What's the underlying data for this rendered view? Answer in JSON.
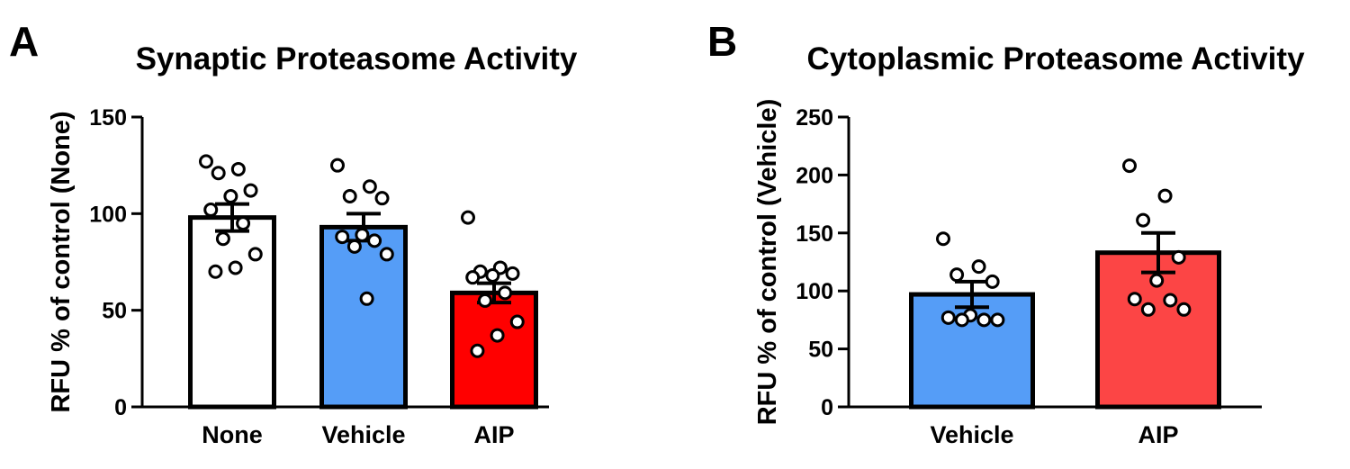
{
  "chart_data": [
    {
      "type": "bar",
      "panel_label": "A",
      "title": "Synaptic Proteasome Activity",
      "xlabel": "",
      "ylabel": "RFU % of control (None)",
      "ylim": [
        0,
        150
      ],
      "yticks": [
        0,
        50,
        100,
        150
      ],
      "ytick_labels": [
        "0",
        "50",
        "100",
        "150"
      ],
      "categories": [
        "None",
        "Vehicle",
        "AIP"
      ],
      "values": [
        98,
        93,
        59
      ],
      "sem": [
        7,
        7,
        5
      ],
      "colors": [
        "#ffffff",
        "#559df7",
        "#ff0000"
      ],
      "points": [
        [
          127,
          123,
          121,
          112,
          109,
          102,
          95,
          87,
          79,
          72,
          70
        ],
        [
          125,
          114,
          109,
          108,
          89,
          88,
          86,
          83,
          79,
          56
        ],
        [
          98,
          72,
          70,
          69,
          68,
          67,
          59,
          55,
          44,
          37,
          29
        ]
      ]
    },
    {
      "type": "bar",
      "panel_label": "B",
      "title": "Cytoplasmic Proteasome Activity",
      "xlabel": "",
      "ylabel": "RFU % of control (Vehicle)",
      "ylim": [
        0,
        250
      ],
      "yticks": [
        0,
        50,
        100,
        150,
        200,
        250
      ],
      "ytick_labels": [
        "0",
        "50",
        "100",
        "150",
        "200",
        "250"
      ],
      "categories": [
        "Vehicle",
        "AIP"
      ],
      "values": [
        97,
        133
      ],
      "sem": [
        11,
        17
      ],
      "colors": [
        "#559df7",
        "#fc4545"
      ],
      "points": [
        [
          145,
          121,
          114,
          108,
          79,
          77,
          75,
          75,
          75
        ],
        [
          208,
          182,
          161,
          129,
          109,
          93,
          92,
          84,
          84
        ]
      ]
    }
  ]
}
